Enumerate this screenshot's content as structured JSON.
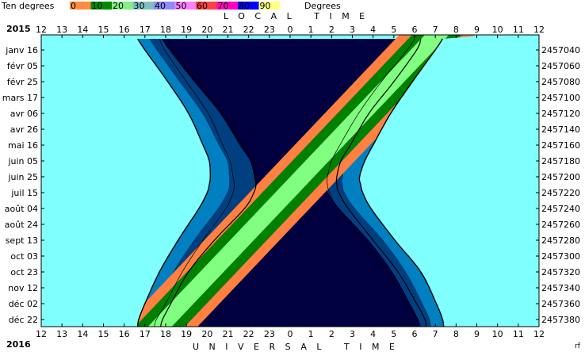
{
  "legend": {
    "title": "Ten degrees",
    "unit": "Degrees",
    "items": [
      {
        "label": "0",
        "color": "#ff8c40"
      },
      {
        "label": "10",
        "color": "#008c00"
      },
      {
        "label": "20",
        "color": "#80f080"
      },
      {
        "label": "30",
        "color": "#80c0c0"
      },
      {
        "label": "40",
        "color": "#8c8cff"
      },
      {
        "label": "50",
        "color": "#ff80ff"
      },
      {
        "label": "60",
        "color": "#ff4040"
      },
      {
        "label": "70",
        "color": "#ff00c0"
      },
      {
        "label": "80",
        "color": "#0000ff"
      },
      {
        "label": "90",
        "color": "#ffff80"
      }
    ]
  },
  "captions": {
    "top_year": "2015",
    "bottom_year": "2016",
    "local_time": "LOCAL TIME",
    "universal_time": "UNIVERSAL TIME",
    "note": "rf"
  },
  "chart_data": {
    "type": "area",
    "top_axis_labels": [
      "12",
      "13",
      "14",
      "15",
      "16",
      "17",
      "18",
      "19",
      "20",
      "21",
      "22",
      "23",
      "0",
      "1",
      "2",
      "3",
      "4",
      "5",
      "6",
      "7",
      "8",
      "9",
      "10",
      "11",
      "12"
    ],
    "bottom_axis_labels": [
      "12",
      "13",
      "14",
      "15",
      "16",
      "17",
      "18",
      "19",
      "20",
      "21",
      "22",
      "23",
      "0",
      "1",
      "2",
      "3",
      "4",
      "5",
      "6",
      "7",
      "8",
      "9",
      "10",
      "11",
      "12"
    ],
    "dates": [
      "janv 16",
      "févr 05",
      "févr 25",
      "mars 17",
      "avr 06",
      "avr 26",
      "mai 16",
      "juin 05",
      "juin 25",
      "juil 15",
      "août 04",
      "août 24",
      "sept 13",
      "oct 03",
      "oct 23",
      "nov 12",
      "déc 02",
      "déc 22"
    ],
    "julian_days": [
      "2457040",
      "2457060",
      "2457080",
      "2457100",
      "2457120",
      "2457140",
      "2457160",
      "2457180",
      "2457200",
      "2457220",
      "2457240",
      "2457260",
      "2457280",
      "2457300",
      "2457320",
      "2457340",
      "2457360",
      "2457380"
    ],
    "x_range_hours_ut": [
      12,
      36
    ],
    "evening_curves": {
      "date_index": [
        -0.7,
        0,
        2,
        4,
        6,
        7,
        8,
        8.5,
        9,
        10,
        12,
        14,
        16,
        17,
        17.5
      ],
      "sunset": [
        16.65,
        17,
        18.1,
        19.1,
        19.8,
        20.1,
        20.15,
        20.1,
        20.0,
        19.6,
        18.6,
        17.7,
        17.0,
        16.7,
        16.65
      ],
      "civil": [
        17.2,
        17.55,
        18.65,
        19.75,
        20.55,
        20.95,
        21.05,
        21.05,
        20.95,
        20.5,
        19.35,
        18.35,
        17.6,
        17.25,
        17.2
      ],
      "nautical": [
        17.8,
        18.15,
        19.35,
        20.6,
        21.55,
        22.05,
        22.25,
        22.3,
        22.15,
        21.6,
        20.2,
        19.05,
        18.2,
        17.8,
        17.75
      ],
      "line_inner": [
        17.7,
        17.95,
        19.0,
        20.05,
        20.75,
        21.1,
        21.25,
        21.3,
        21.25,
        20.9,
        19.8,
        18.8,
        18.0,
        17.55,
        17.45
      ],
      "line_outer": [
        18.1,
        18.3,
        19.5,
        20.75,
        21.7,
        22.2,
        22.3,
        22.35,
        22.25,
        21.8,
        20.35,
        19.1,
        18.25,
        17.85,
        17.75
      ]
    },
    "morning_curves": {
      "date_index": [
        -0.7,
        0,
        2,
        4,
        6,
        7,
        8,
        8.5,
        9,
        10,
        12,
        14,
        16,
        17,
        17.5
      ],
      "nautical": [
        29.95,
        29.8,
        28.9,
        27.6,
        26.45,
        25.95,
        25.75,
        25.7,
        25.85,
        26.4,
        27.8,
        28.95,
        29.8,
        30.2,
        30.25
      ],
      "civil": [
        30.55,
        30.45,
        29.45,
        28.25,
        27.25,
        26.75,
        26.55,
        26.55,
        26.65,
        27.15,
        28.5,
        29.6,
        30.4,
        30.75,
        30.8
      ],
      "sunrise": [
        31.35,
        31.0,
        29.9,
        28.85,
        28.0,
        27.6,
        27.35,
        27.4,
        27.5,
        27.9,
        29.05,
        30.3,
        31.05,
        31.35,
        31.4
      ],
      "line_inner": [
        30.0,
        29.65,
        28.4,
        27.3,
        26.4,
        26.0,
        25.8,
        25.8,
        25.9,
        26.3,
        27.5,
        28.7,
        29.6,
        30.15,
        30.3
      ],
      "line_outer": [
        30.3,
        30.1,
        29.0,
        27.8,
        26.9,
        26.45,
        26.25,
        26.25,
        26.35,
        26.8,
        28.0,
        29.2,
        30.1,
        30.5,
        30.55
      ]
    },
    "stripe_top_hours": [
      31.15,
      17.65
    ],
    "stripe_bottom_hours": [
      26.9,
      12.35
    ],
    "stripe_band_widths": [
      0.62,
      0.62,
      1.15,
      1.75
    ],
    "colors": {
      "day": "#80ffff",
      "civil_twilight": "#0080c0",
      "nautical_twilight": "#004080",
      "night": "#000040",
      "orange": "#ff8040",
      "green": "#008000",
      "light_green": "#80ff80",
      "line": "#000000"
    }
  }
}
